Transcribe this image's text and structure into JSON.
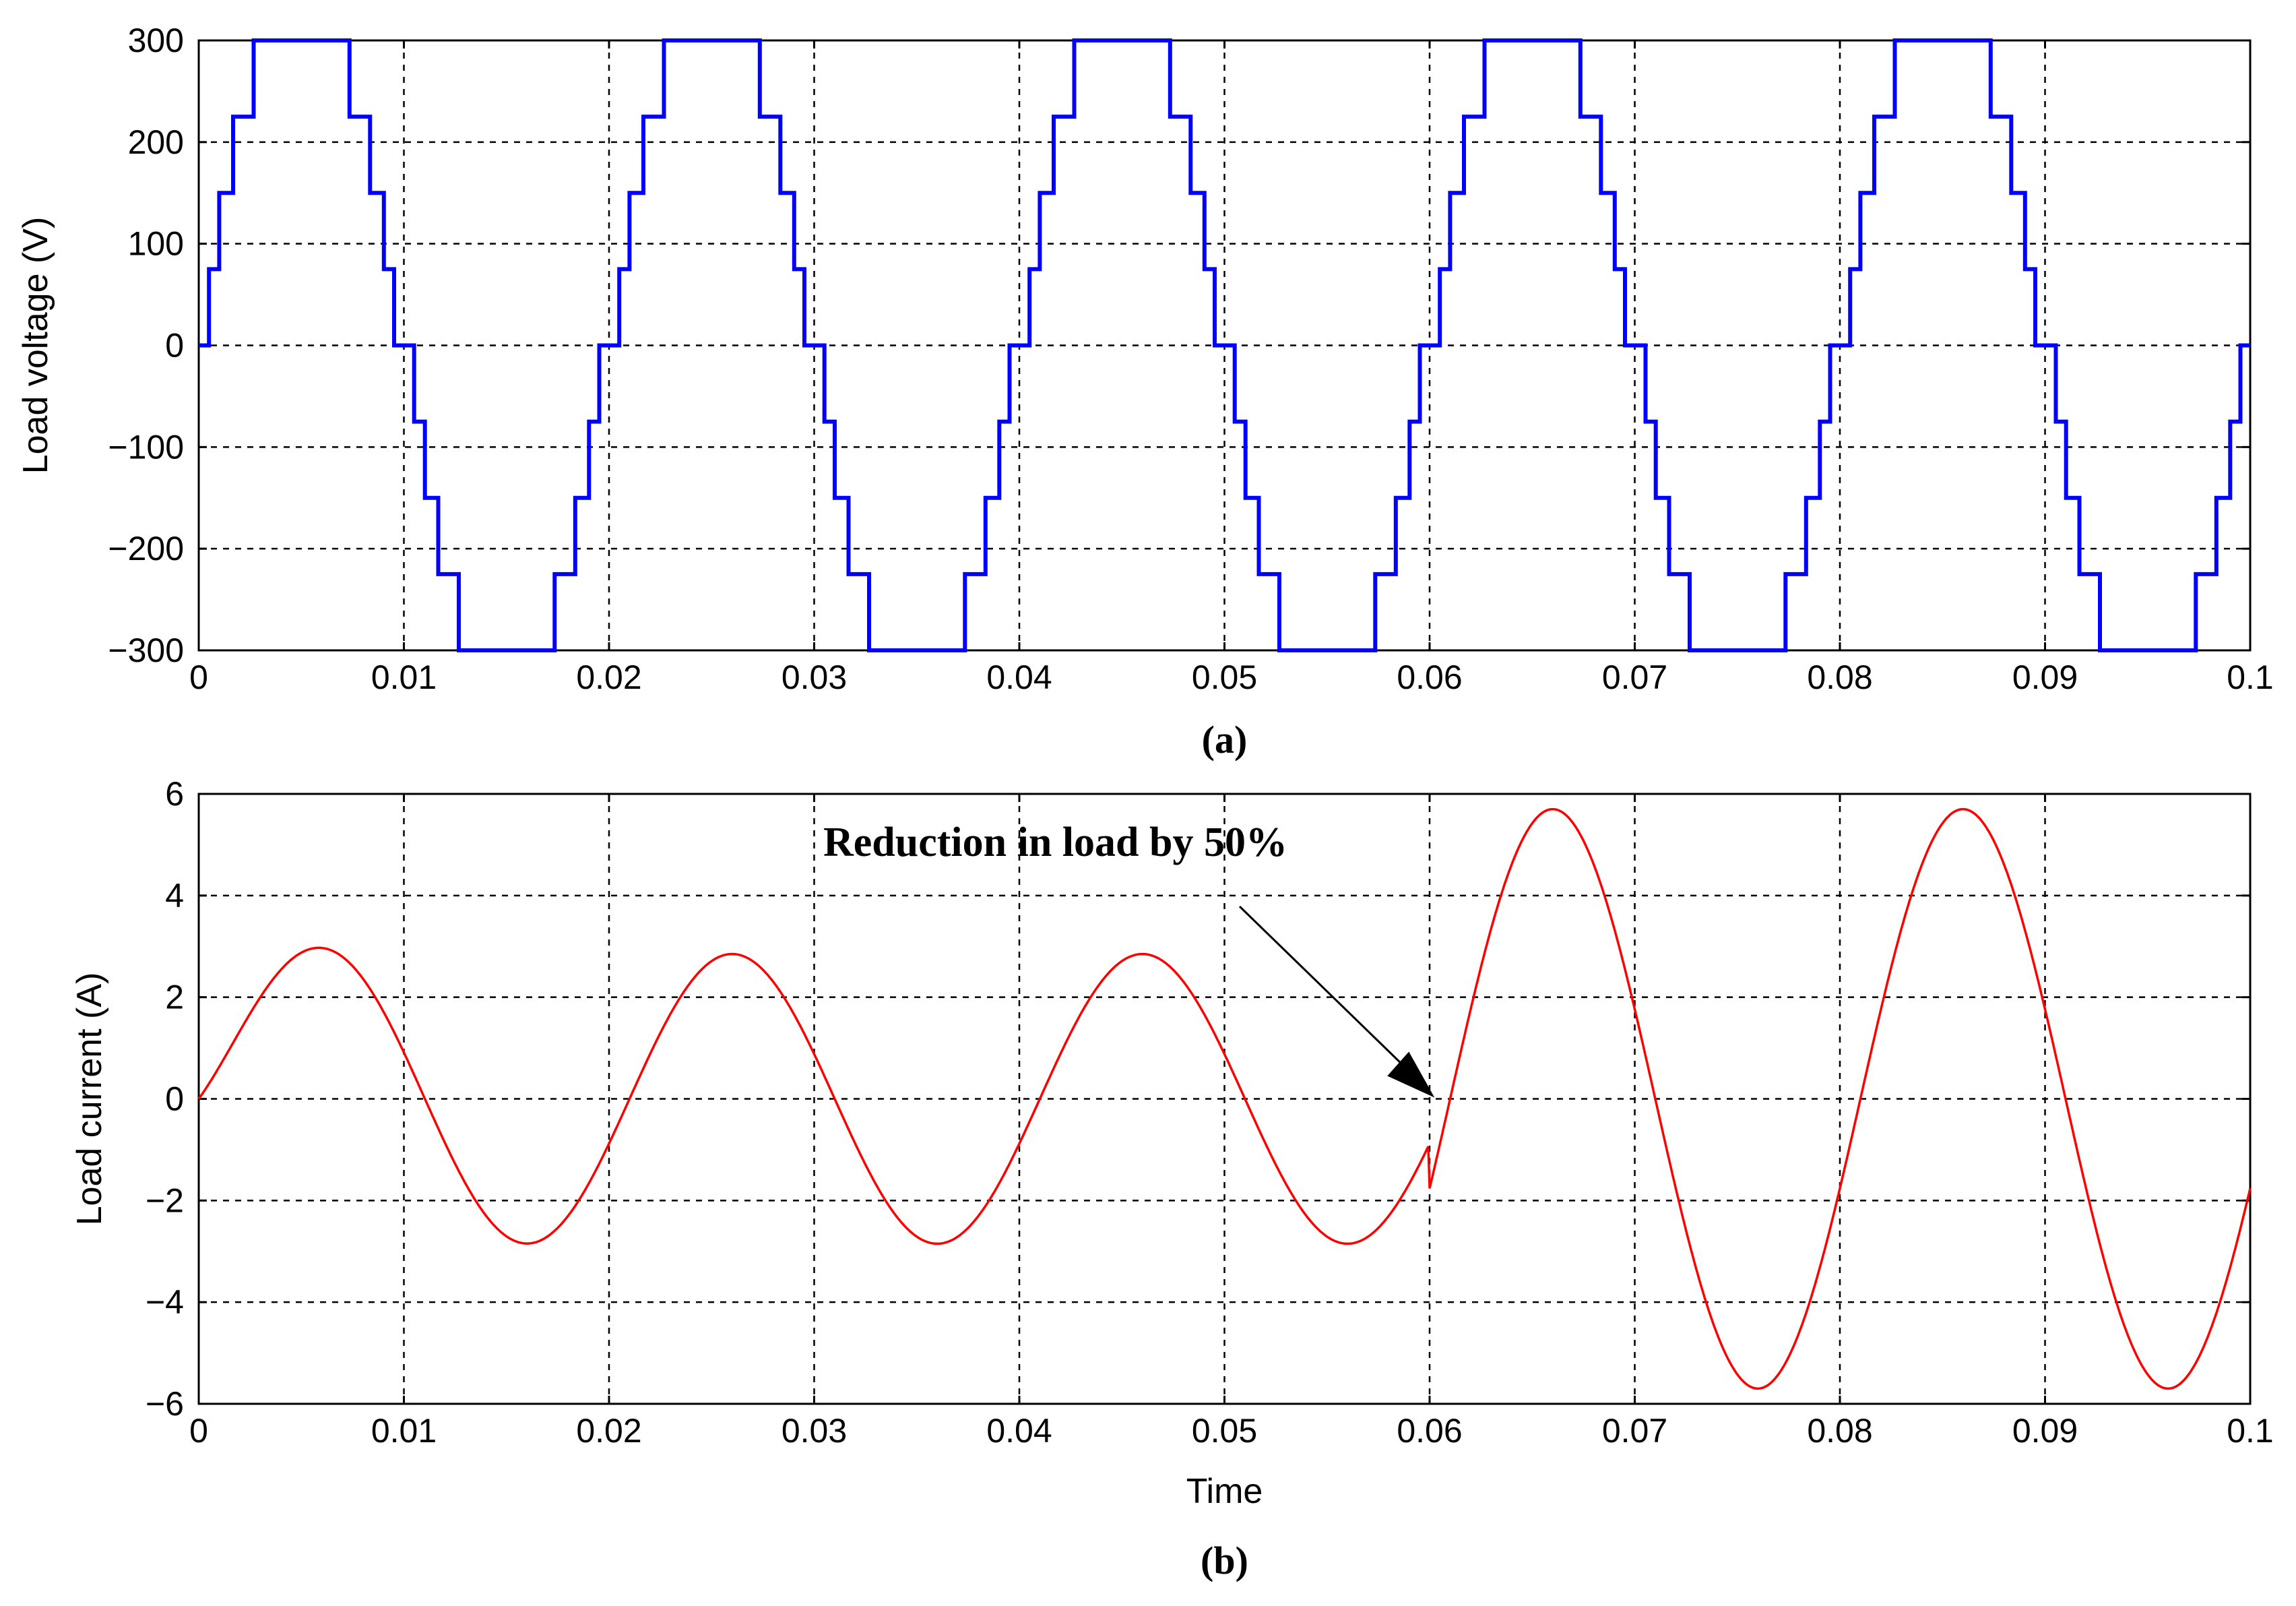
{
  "chart_data": [
    {
      "type": "line",
      "panel_label": "(a)",
      "xlabel": "",
      "ylabel": "Load voltage (V)",
      "xlim": [
        0,
        0.1
      ],
      "ylim": [
        -300,
        300
      ],
      "xticks": [
        "0",
        "0.01",
        "0.02",
        "0.03",
        "0.04",
        "0.05",
        "0.06",
        "0.07",
        "0.08",
        "0.09",
        "0.1"
      ],
      "yticks": [
        "300",
        "200",
        "100",
        "0",
        "−100",
        "−200",
        "−300"
      ],
      "grid": true,
      "series": [
        {
          "color": "#0000ff",
          "waveform": "9-level staircase, fundamental 50 Hz",
          "step_levels": [
            -300,
            -225,
            -150,
            -75,
            0,
            75,
            150,
            225,
            300
          ],
          "step_switching_angles_deg": [
            9,
            18,
            30,
            48
          ],
          "x_start": 0,
          "x_end": 0.1
        }
      ]
    },
    {
      "type": "line",
      "panel_label": "(b)",
      "xlabel": "Time",
      "ylabel": "Load current (A)",
      "xlim": [
        0,
        0.1
      ],
      "ylim": [
        -6,
        6
      ],
      "xticks": [
        "0",
        "0.01",
        "0.02",
        "0.03",
        "0.04",
        "0.05",
        "0.06",
        "0.07",
        "0.08",
        "0.09",
        "0.1"
      ],
      "yticks": [
        "6",
        "4",
        "2",
        "0",
        "−2",
        "−4",
        "−6"
      ],
      "grid": true,
      "annotation": {
        "text": "Reduction in load by 50%",
        "target": {
          "x": 0.0605,
          "y": 0
        }
      },
      "series": [
        {
          "color": "#ff0000",
          "segments": [
            {
              "x_start": 0,
              "x_end": 0.06,
              "amplitude": 2.85,
              "frequency_hz": 50,
              "phase_lag_deg": 18
            },
            {
              "x_start": 0.06,
              "x_end": 0.1,
              "amplitude": 5.7,
              "frequency_hz": 50,
              "phase_lag_deg": 18
            }
          ],
          "peaks": [
            {
              "x": 0.0058,
              "y": 2.85
            },
            {
              "x": 0.0158,
              "y": -2.85
            },
            {
              "x": 0.0258,
              "y": 2.85
            },
            {
              "x": 0.0358,
              "y": -2.85
            },
            {
              "x": 0.0458,
              "y": 2.85
            },
            {
              "x": 0.0558,
              "y": -2.85
            },
            {
              "x": 0.066,
              "y": 5.7
            },
            {
              "x": 0.076,
              "y": -5.6
            },
            {
              "x": 0.086,
              "y": 5.7
            },
            {
              "x": 0.096,
              "y": -5.6
            }
          ]
        }
      ]
    }
  ]
}
